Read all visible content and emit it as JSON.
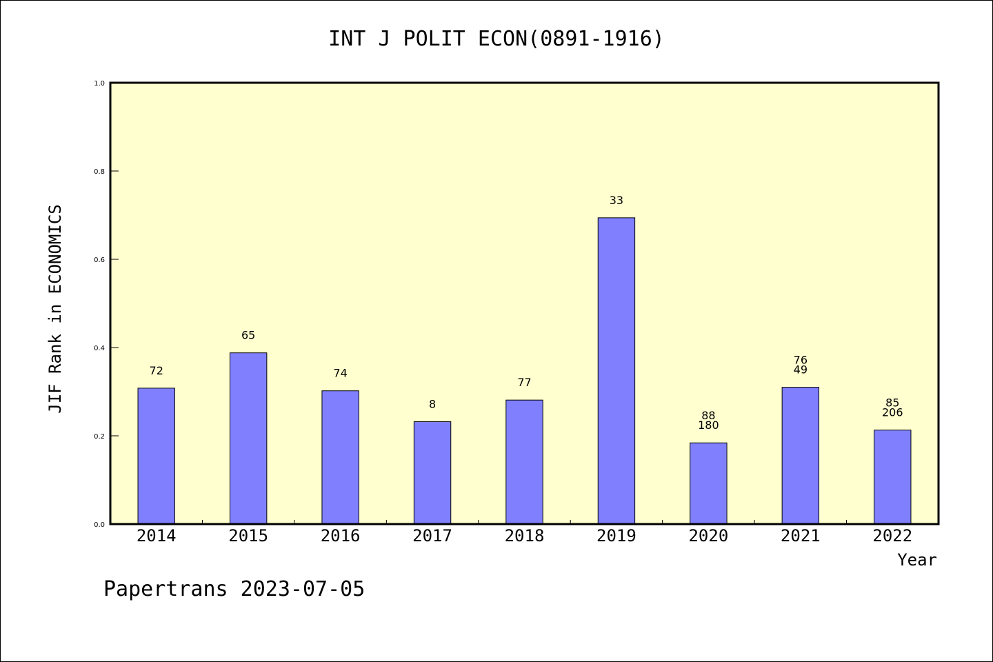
{
  "chart_data": {
    "type": "bar",
    "title": "INT J POLIT ECON(0891-1916)",
    "xlabel": "Year",
    "ylabel": "JIF Rank in ECONOMICS",
    "ylim": [
      0,
      1.0
    ],
    "yticks": [
      "0.0",
      "0.2",
      "0.4",
      "0.6",
      "0.8",
      "1.0"
    ],
    "categories": [
      "2014",
      "2015",
      "2016",
      "2017",
      "2018",
      "2019",
      "2020",
      "2021",
      "2022"
    ],
    "values": [
      0.308,
      0.388,
      0.302,
      0.232,
      0.281,
      0.694,
      0.184,
      0.31,
      0.213
    ],
    "labels": [
      [
        "72"
      ],
      [
        "65"
      ],
      [
        "74"
      ],
      [
        "8"
      ],
      [
        "77"
      ],
      [
        "33"
      ],
      [
        "88",
        "180"
      ],
      [
        "76",
        "49"
      ],
      [
        "85",
        "206"
      ]
    ],
    "grid": false,
    "colors": {
      "plot_bg": "#ffffd0",
      "bar": "#8080ff",
      "axis": "#000000"
    }
  },
  "footer": "Papertrans 2023-07-05"
}
